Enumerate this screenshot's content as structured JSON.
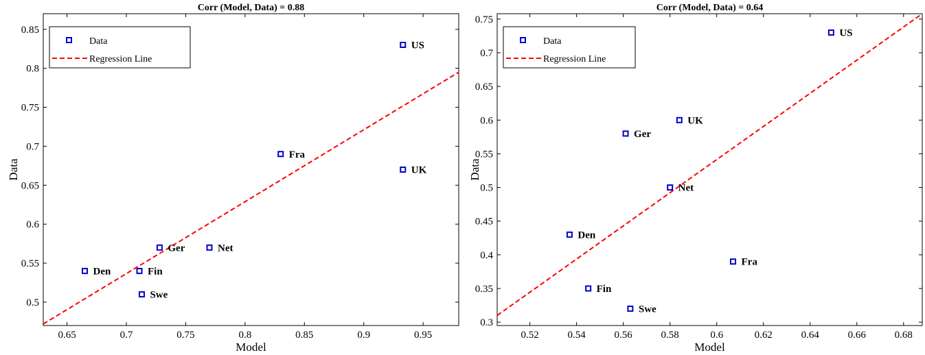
{
  "chart_data": [
    {
      "type": "scatter",
      "title": "Corr (Model, Data) = 0.88",
      "xlabel": "Model",
      "ylabel": "Data",
      "xlim": [
        0.63,
        0.98
      ],
      "ylim": [
        0.47,
        0.87
      ],
      "xticks": [
        "0.65",
        "0.7",
        "0.75",
        "0.8",
        "0.85",
        "0.9",
        "0.95"
      ],
      "yticks": [
        "0.5",
        "0.55",
        "0.6",
        "0.65",
        "0.7",
        "0.75",
        "0.8",
        "0.85"
      ],
      "grid": false,
      "legend": {
        "position": "top-left",
        "entries": [
          "Data",
          "Regression Line"
        ]
      },
      "colors": {
        "data": "#0000cc",
        "regression": "#ff0000"
      },
      "points": [
        {
          "label": "US",
          "x": 0.933,
          "y": 0.83
        },
        {
          "label": "UK",
          "x": 0.933,
          "y": 0.67
        },
        {
          "label": "Fra",
          "x": 0.83,
          "y": 0.69
        },
        {
          "label": "Net",
          "x": 0.77,
          "y": 0.57
        },
        {
          "label": "Ger",
          "x": 0.728,
          "y": 0.57
        },
        {
          "label": "Fin",
          "x": 0.711,
          "y": 0.54
        },
        {
          "label": "Den",
          "x": 0.665,
          "y": 0.54
        },
        {
          "label": "Swe",
          "x": 0.713,
          "y": 0.51
        }
      ],
      "regression": {
        "x": [
          0.63,
          0.98
        ],
        "y": [
          0.472,
          0.795
        ]
      }
    },
    {
      "type": "scatter",
      "title": "Corr (Model, Data) = 0.64",
      "xlabel": "Model",
      "ylabel": "Data",
      "xlim": [
        0.506,
        0.688
      ],
      "ylim": [
        0.295,
        0.758
      ],
      "xticks": [
        "0.52",
        "0.54",
        "0.56",
        "0.58",
        "0.6",
        "0.62",
        "0.64",
        "0.66",
        "0.68"
      ],
      "yticks": [
        "0.3",
        "0.35",
        "0.4",
        "0.45",
        "0.5",
        "0.55",
        "0.6",
        "0.65",
        "0.7",
        "0.75"
      ],
      "grid": false,
      "legend": {
        "position": "top-left",
        "entries": [
          "Data",
          "Regression Line"
        ]
      },
      "colors": {
        "data": "#0000cc",
        "regression": "#ff0000"
      },
      "points": [
        {
          "label": "US",
          "x": 0.649,
          "y": 0.73
        },
        {
          "label": "UK",
          "x": 0.584,
          "y": 0.6
        },
        {
          "label": "Ger",
          "x": 0.561,
          "y": 0.58
        },
        {
          "label": "Net",
          "x": 0.58,
          "y": 0.5
        },
        {
          "label": "Den",
          "x": 0.537,
          "y": 0.43
        },
        {
          "label": "Fra",
          "x": 0.607,
          "y": 0.39
        },
        {
          "label": "Fin",
          "x": 0.545,
          "y": 0.35
        },
        {
          "label": "Swe",
          "x": 0.563,
          "y": 0.32
        }
      ],
      "regression": {
        "x": [
          0.506,
          0.688
        ],
        "y": [
          0.31,
          0.758
        ]
      }
    }
  ]
}
